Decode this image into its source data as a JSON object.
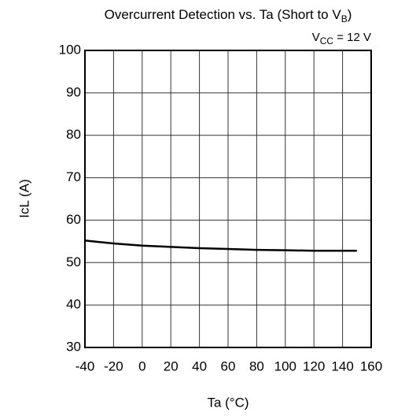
{
  "chart_data": {
    "type": "line",
    "title": {
      "text": "Overcurrent Detection vs. Ta (Short to V",
      "sub": "B",
      "end": ")"
    },
    "annotation": {
      "text": "V",
      "sub": "CC",
      "end": " = 12 V"
    },
    "x_label": "Ta  (°C)",
    "y_label": "IcL  (A)",
    "x": [
      -40,
      -20,
      0,
      20,
      40,
      60,
      80,
      100,
      120,
      140,
      150
    ],
    "series": [
      {
        "name": "IcL",
        "color": "#000000",
        "values": [
          55.2,
          54.5,
          54.0,
          53.7,
          53.4,
          53.2,
          53.0,
          52.9,
          52.8,
          52.8,
          52.8
        ]
      }
    ],
    "xlim": [
      -40,
      160
    ],
    "xticks": [
      -40,
      -20,
      0,
      20,
      40,
      60,
      80,
      100,
      120,
      140,
      160
    ],
    "ylim": [
      30,
      100
    ],
    "yticks": [
      30,
      40,
      50,
      60,
      70,
      80,
      90,
      100
    ],
    "grid": true
  }
}
